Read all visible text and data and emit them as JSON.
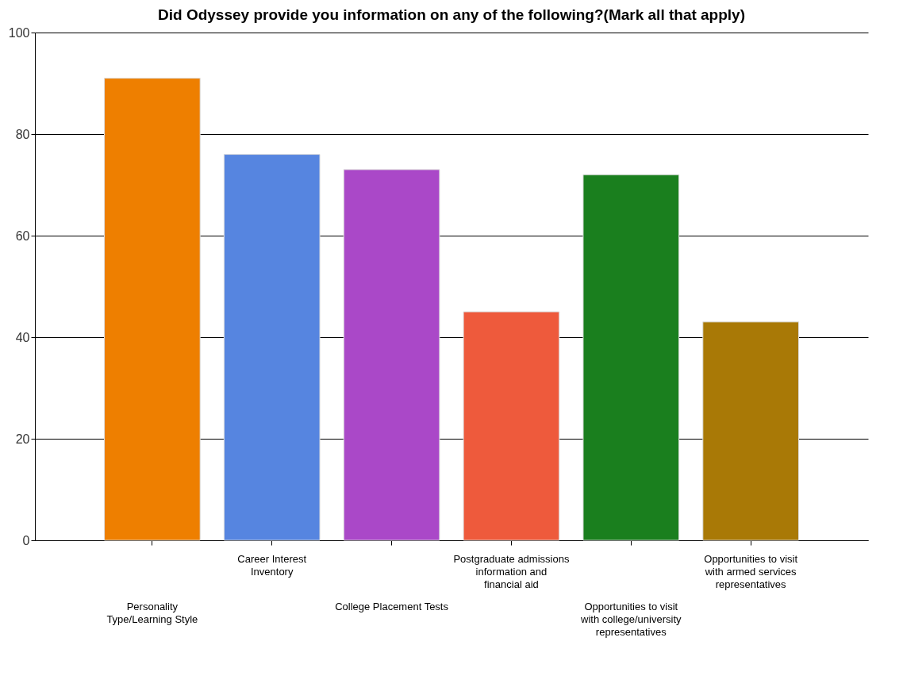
{
  "chart_data": {
    "type": "bar",
    "title": "Did Odyssey provide you information on any of the following?(Mark all that apply)",
    "categories": [
      "Personality Type/Learning Style",
      "Career Interest Inventory",
      "College Placement Tests",
      "Postgraduate admissions information and financial aid",
      "Opportunities to visit with college/university representatives",
      "Opportunities to visit with armed services representatives"
    ],
    "values": [
      91,
      76,
      73,
      45,
      72,
      43
    ],
    "colors": [
      "#ee7f00",
      "#5685e0",
      "#aa48c8",
      "#ee5a3c",
      "#1a7f1e",
      "#a97906"
    ],
    "ylim": [
      0,
      100
    ],
    "yticks": [
      0,
      20,
      40,
      60,
      80,
      100
    ],
    "grid": "y",
    "legend": false
  }
}
